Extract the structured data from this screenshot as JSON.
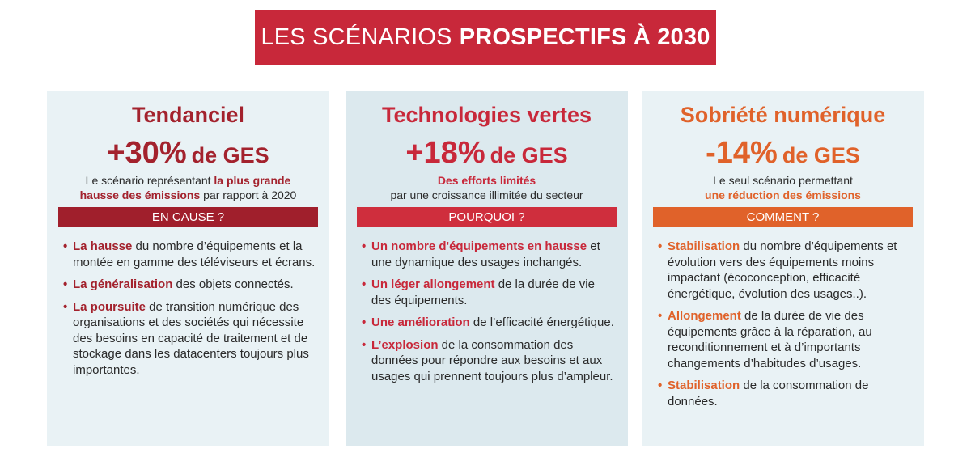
{
  "header": {
    "title_light": "LES SCÉNARIOS",
    "title_bold": "PROSPECTIFS À 2030"
  },
  "columns": [
    {
      "color": "#a3222d",
      "band_color": "#a01f2c",
      "background": "#e9f2f5",
      "title": "Tendanciel",
      "stat": "+30%",
      "stat_unit": "de GES",
      "description": [
        [
          {
            "text": "Le scénario représentant "
          },
          {
            "strong": "la plus grande"
          }
        ],
        [
          {
            "strong": "hausse des émissions"
          },
          {
            "text": " par rapport à 2020"
          }
        ]
      ],
      "band": "EN CAUSE ?",
      "bullets": [
        [
          {
            "strong": "La hausse"
          },
          {
            "text": " du nombre d’équipements et la montée en gamme des téléviseurs et écrans."
          }
        ],
        [
          {
            "strong": "La généralisation"
          },
          {
            "text": " des objets connectés."
          }
        ],
        [
          {
            "strong": "La poursuite"
          },
          {
            "text": " de transition numérique des organisations et des sociétés qui nécessite des besoins en capacité de traitement et de stockage dans les datacenters toujours plus importantes."
          }
        ]
      ]
    },
    {
      "color": "#c8283a",
      "band_color": "#cf2e3d",
      "background": "#dce9ee",
      "title": "Technologies vertes",
      "stat": "+18%",
      "stat_unit": "de GES",
      "description": [
        [
          {
            "strong": "Des efforts limités"
          }
        ],
        [
          {
            "text": "par une croissance illimitée du secteur"
          }
        ]
      ],
      "band": "POURQUOI ?",
      "bullets": [
        [
          {
            "strong": "Un nombre d'équipements en hausse"
          },
          {
            "text": " et une dynamique des usages inchangés."
          }
        ],
        [
          {
            "strong": "Un léger allongement"
          },
          {
            "text": " de la durée de vie des équipements."
          }
        ],
        [
          {
            "strong": "Une amélioration"
          },
          {
            "text": " de l’efficacité énergétique."
          }
        ],
        [
          {
            "strong": "L’explosion"
          },
          {
            "text": " de la consommation des données pour répondre aux besoins et aux usages qui prennent toujours plus d’ampleur."
          }
        ]
      ]
    },
    {
      "color": "#e0622a",
      "band_color": "#e0622a",
      "background": "#e9f2f5",
      "title": "Sobriété numérique",
      "stat": "-14%",
      "stat_unit": "de GES",
      "description": [
        [
          {
            "text": "Le seul scénario permettant"
          }
        ],
        [
          {
            "strong": "une réduction des émissions"
          }
        ]
      ],
      "band": "COMMENT ?",
      "bullets": [
        [
          {
            "strong": "Stabilisation"
          },
          {
            "text": " du nombre d’équipements et évolution vers des équipements moins impactant (écoconception, efficacité énergétique, évolution des usages..)."
          }
        ],
        [
          {
            "strong": "Allongement"
          },
          {
            "text": " de la durée de vie des équipements grâce à la réparation, au reconditionnement et à d’importants changements d’habitudes d’usages."
          }
        ],
        [
          {
            "strong": "Stabilisation"
          },
          {
            "text": " de la consommation de données."
          }
        ]
      ]
    }
  ]
}
